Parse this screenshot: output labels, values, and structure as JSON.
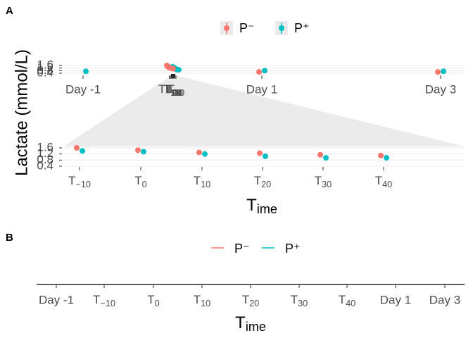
{
  "chart_data": [
    {
      "type": "scatter",
      "tag": "A",
      "ylabel": "Lactate (mmol/L)",
      "xlabel": "Time",
      "categories": [
        "Day -1",
        "T−10",
        "T0",
        "T10",
        "T20",
        "T30",
        "T40",
        "Day 1",
        "Day 3"
      ],
      "series": [
        {
          "name": "P⁻",
          "color": "#F8766D",
          "values": [
            null,
            1.6,
            1.45,
            1.3,
            1.25,
            1.15,
            1.1,
            0.6,
            0.6
          ]
        },
        {
          "name": "P⁺",
          "color": "#00BFC4",
          "values": [
            0.7,
            1.4,
            1.35,
            1.2,
            1.05,
            0.95,
            0.95,
            0.8,
            0.7
          ]
        }
      ],
      "ylim": [
        0.3,
        1.7
      ],
      "yticks": [
        0.4,
        0.8,
        1.2,
        1.6
      ],
      "grid": true
    },
    {
      "type": "line",
      "tag": "B",
      "xlabel": "Time",
      "categories": [
        "Day -1",
        "T−10",
        "T0",
        "T10",
        "T20",
        "T30",
        "T40",
        "Day 1",
        "Day 3"
      ],
      "series": [
        {
          "name": "P⁻",
          "color": "#F8766D"
        },
        {
          "name": "P⁺",
          "color": "#00BFC4"
        }
      ]
    }
  ]
}
